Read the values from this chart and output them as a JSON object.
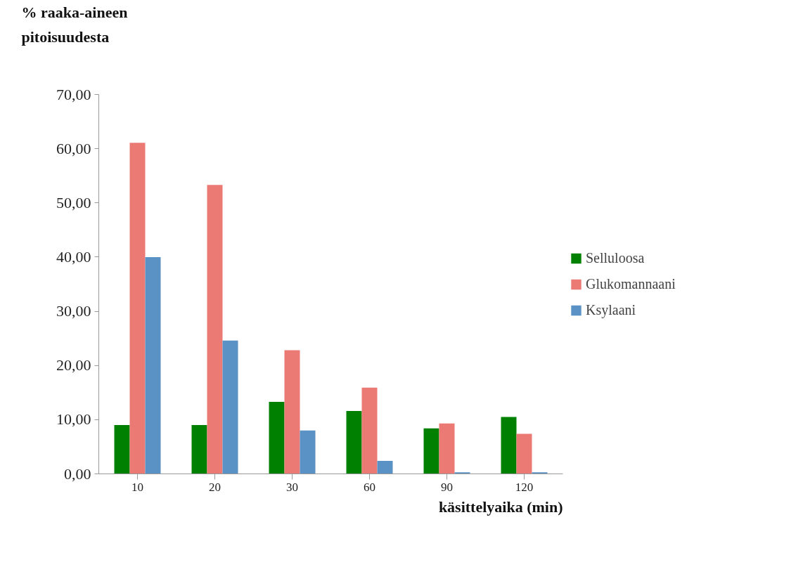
{
  "chart_data": {
    "type": "bar",
    "ylabel": "% raaka-aineen pitoisuudesta",
    "xlabel": "käsittelyaika (min)",
    "categories": [
      "10",
      "20",
      "30",
      "60",
      "90",
      "120"
    ],
    "series": [
      {
        "name": "Selluloosa",
        "color": "#008000",
        "values": [
          9.0,
          9.0,
          13.3,
          11.6,
          8.4,
          10.5
        ]
      },
      {
        "name": "Glukomannaani",
        "color": "#ec7a74",
        "values": [
          61.1,
          53.3,
          22.8,
          15.9,
          9.3,
          7.4
        ]
      },
      {
        "name": "Ksylaani",
        "color": "#5b92c6",
        "values": [
          40.0,
          24.6,
          8.0,
          2.4,
          0.3,
          0.3
        ]
      }
    ],
    "ylim": [
      0,
      70
    ],
    "yticks": [
      {
        "value": 0,
        "label": "0,00"
      },
      {
        "value": 10,
        "label": "10,00"
      },
      {
        "value": 20,
        "label": "20,00"
      },
      {
        "value": 30,
        "label": "30,00"
      },
      {
        "value": 40,
        "label": "40,00"
      },
      {
        "value": 50,
        "label": "50,00"
      },
      {
        "value": 60,
        "label": "60,00"
      },
      {
        "value": 70,
        "label": "70,00"
      }
    ],
    "grid": false,
    "legend": "right"
  }
}
